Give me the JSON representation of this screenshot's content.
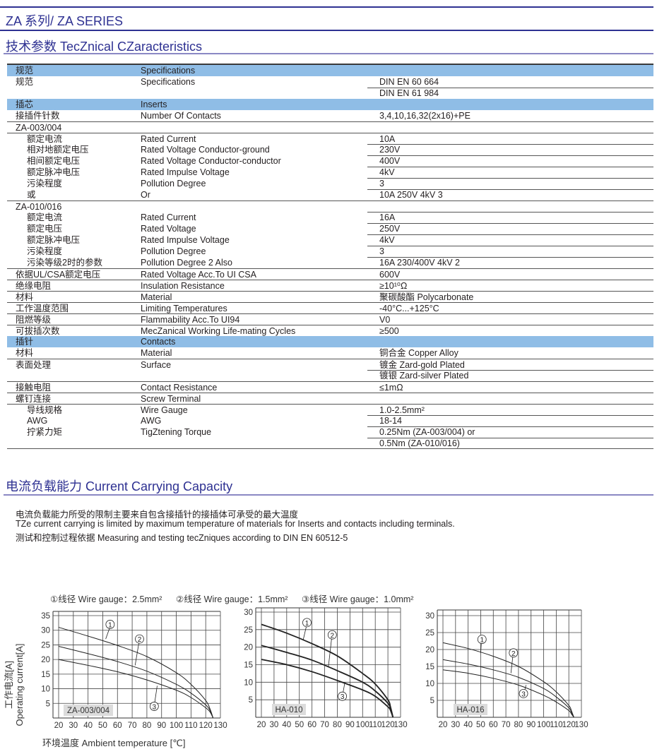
{
  "header": {
    "series_title": "ZA 系列/ ZA SERIES",
    "section_title": "技术参数 TecZnical CZaracteristics"
  },
  "table": {
    "rows": [
      {
        "cn": "规范",
        "en": "Specifications",
        "value": ""
      },
      {
        "cn": "规范",
        "en": "Specifications",
        "value": "DIN EN 60 664"
      },
      {
        "cn": "",
        "en": "",
        "value": "DIN EN 61 984"
      },
      {
        "cn": "插芯",
        "en": "Inserts",
        "value": ""
      },
      {
        "cn": "接插件针数",
        "en": "Number Of Contacts",
        "value": "3,4,10,16,32(2x16)+PE"
      },
      {
        "cn": "ZA-003/004",
        "en": "",
        "value": ""
      },
      {
        "cn": "额定电流",
        "en": "Rated Current",
        "value": "10A"
      },
      {
        "cn": "相对地额定电压",
        "en": "Rated Voltage Conductor-ground",
        "value": "230V"
      },
      {
        "cn": "相间额定电压",
        "en": "Rated Voltage Conductor-conductor",
        "value": "400V"
      },
      {
        "cn": "额定脉冲电压",
        "en": "Rated Impulse Voltage",
        "value": "4kV"
      },
      {
        "cn": "污染程度",
        "en": "Pollution Degree",
        "value": "3"
      },
      {
        "cn": "或",
        "en": "Or",
        "value": "10A 250V 4kV 3"
      },
      {
        "cn": "ZA-010/016",
        "en": "",
        "value": ""
      },
      {
        "cn": "额定电流",
        "en": "Rated Current",
        "value": "16A"
      },
      {
        "cn": "额定电压",
        "en": "Rated Voltage",
        "value": "250V"
      },
      {
        "cn": "额定脉冲电压",
        "en": "Rated Impulse Voltage",
        "value": "4kV"
      },
      {
        "cn": "污染程度",
        "en": "Pollution Degree",
        "value": "3"
      },
      {
        "cn": "污染等级2时的参数",
        "en": "Pollution Degree 2 Also",
        "value": "16A 230/400V 4kV 2"
      },
      {
        "cn": "依据UL/CSA额定电压",
        "en": "Rated Voltage Acc.To UI CSA",
        "value": "600V"
      },
      {
        "cn": "绝缘电阻",
        "en": "Insulation Resistance",
        "value": "≥10¹⁰Ω"
      },
      {
        "cn": "材料",
        "en": "Material",
        "value": "聚碳酸酯 Polycarbonate"
      },
      {
        "cn": "工作温度范围",
        "en": "Limiting Temperatures",
        "value": "-40°C...+125°C"
      },
      {
        "cn": "阻燃等级",
        "en": "Flammability Acc.To UI94",
        "value": "V0"
      },
      {
        "cn": "可拔插次数",
        "en": "MecZanical Working Life-mating Cycles",
        "value": "≥500"
      },
      {
        "cn": "插针",
        "en": "Contacts",
        "value": ""
      },
      {
        "cn": "材料",
        "en": "Material",
        "value": "铜合金 Copper Alloy"
      },
      {
        "cn": "表面处理",
        "en": "Surface",
        "value": "镀金 Zard-gold Plated"
      },
      {
        "cn": "",
        "en": "",
        "value": "镀银 Zard-silver Plated"
      },
      {
        "cn": "接触电阻",
        "en": "Contact Resistance",
        "value": "≤1mΩ"
      },
      {
        "cn": "螺钉连接",
        "en": "Screw Terminal",
        "value": ""
      },
      {
        "cn": "导线规格",
        "en": "Wire Gauge",
        "value": "1.0-2.5mm²"
      },
      {
        "cn": "AWG",
        "en": "AWG",
        "value": "18-14"
      },
      {
        "cn": "拧紧力矩",
        "en": "TigZtening Torque",
        "value": "0.25Nm (ZA-003/004) or"
      },
      {
        "cn": "",
        "en": "",
        "value": "0.5Nm (ZA-010/016)"
      }
    ],
    "header_color": "#8fbde6"
  },
  "capacity": {
    "title": "电流负载能力 Current Carrying Capacity",
    "lines": [
      "电流负载能力所受的限制主要来自包含接插针的接插体可承受的最大温度",
      "TZe current carrying is limited by maximum temperature of materials for Inserts and contacts including terminals.",
      "测试和控制过程依据 Measuring and testing tecZniques according to DIN EN 60512-5"
    ],
    "legend": [
      "①线径 Wire gauge：2.5mm²",
      "②线径 Wire gauge：1.5mm²",
      "③线径 Wire gauge：1.0mm²"
    ],
    "ylabel_cn": "工作电流[A]",
    "ylabel_en": "Operating current[A]",
    "xlabel": "环境温度 Ambient temperature [℃]"
  },
  "chart_data": [
    {
      "type": "line",
      "title": "ZA-003/004",
      "xlim": [
        20,
        130
      ],
      "ylim": [
        0,
        35
      ],
      "xticks": [
        20,
        30,
        40,
        50,
        60,
        70,
        80,
        90,
        100,
        110,
        120,
        130
      ],
      "yticks": [
        5,
        10,
        15,
        20,
        25,
        30,
        35
      ],
      "grid": true,
      "xlabel": "环境温度 Ambient temperature [℃]",
      "ylabel": "工作电流[A] Operating current[A]",
      "series": [
        {
          "name": "①",
          "points": [
            [
              20,
              31
            ],
            [
              40,
              28
            ],
            [
              60,
              24.8
            ],
            [
              80,
              21
            ],
            [
              100,
              15.5
            ],
            [
              110,
              11.5
            ],
            [
              120,
              6
            ],
            [
              123,
              3
            ],
            [
              125,
              0
            ]
          ]
        },
        {
          "name": "②",
          "points": [
            [
              20,
              24.5
            ],
            [
              40,
              22
            ],
            [
              60,
              19.3
            ],
            [
              80,
              16
            ],
            [
              100,
              11.5
            ],
            [
              110,
              8.5
            ],
            [
              120,
              4.5
            ],
            [
              123,
              2.5
            ],
            [
              125,
              0
            ]
          ]
        },
        {
          "name": "③",
          "points": [
            [
              20,
              20
            ],
            [
              40,
              18
            ],
            [
              60,
              15.8
            ],
            [
              80,
              13
            ],
            [
              100,
              9.5
            ],
            [
              110,
              7
            ],
            [
              120,
              3.5
            ],
            [
              123,
              2
            ],
            [
              125,
              0
            ]
          ]
        }
      ]
    },
    {
      "type": "line",
      "title": "HA-010",
      "xlim": [
        20,
        130
      ],
      "ylim": [
        0,
        30
      ],
      "xticks": [
        20,
        30,
        40,
        50,
        60,
        70,
        80,
        90,
        100,
        110,
        120,
        130
      ],
      "yticks": [
        5,
        10,
        15,
        20,
        25,
        30
      ],
      "grid": true,
      "series": [
        {
          "name": "①",
          "points": [
            [
              20,
              26.5
            ],
            [
              40,
              24
            ],
            [
              60,
              21
            ],
            [
              80,
              17.5
            ],
            [
              100,
              12.5
            ],
            [
              110,
              9.5
            ],
            [
              120,
              5
            ],
            [
              122,
              3
            ],
            [
              124,
              0
            ]
          ]
        },
        {
          "name": "②",
          "points": [
            [
              20,
              20.5
            ],
            [
              40,
              18.5
            ],
            [
              60,
              16.3
            ],
            [
              80,
              13.3
            ],
            [
              100,
              10
            ],
            [
              110,
              7.5
            ],
            [
              120,
              4
            ],
            [
              122,
              2.5
            ],
            [
              124,
              0
            ]
          ]
        },
        {
          "name": "③",
          "points": [
            [
              20,
              16.5
            ],
            [
              40,
              15
            ],
            [
              60,
              13
            ],
            [
              80,
              10.5
            ],
            [
              100,
              7.8
            ],
            [
              110,
              6
            ],
            [
              120,
              3
            ],
            [
              122,
              2
            ],
            [
              124,
              0
            ]
          ]
        }
      ]
    },
    {
      "type": "line",
      "title": "HA-016",
      "xlim": [
        20,
        130
      ],
      "ylim": [
        0,
        30
      ],
      "xticks": [
        20,
        30,
        40,
        50,
        60,
        70,
        80,
        90,
        100,
        110,
        120,
        130
      ],
      "yticks": [
        5,
        10,
        15,
        20,
        25,
        30
      ],
      "grid": true,
      "series": [
        {
          "name": "①",
          "points": [
            [
              20,
              22
            ],
            [
              40,
              20.3
            ],
            [
              60,
              18
            ],
            [
              80,
              15
            ],
            [
              100,
              10.5
            ],
            [
              110,
              7.5
            ],
            [
              120,
              3.5
            ],
            [
              122,
              2
            ],
            [
              124,
              0
            ]
          ]
        },
        {
          "name": "②",
          "points": [
            [
              20,
              17
            ],
            [
              40,
              15.7
            ],
            [
              60,
              14
            ],
            [
              80,
              11.8
            ],
            [
              100,
              8.5
            ],
            [
              110,
              6
            ],
            [
              120,
              2.8
            ],
            [
              122,
              1.5
            ],
            [
              124,
              0
            ]
          ]
        },
        {
          "name": "③",
          "points": [
            [
              20,
              14
            ],
            [
              40,
              13
            ],
            [
              60,
              11.5
            ],
            [
              80,
              9.5
            ],
            [
              100,
              6.5
            ],
            [
              110,
              4.5
            ],
            [
              120,
              2
            ],
            [
              122,
              1
            ],
            [
              124,
              0
            ]
          ]
        }
      ]
    }
  ],
  "colors": {
    "brand": "#2e3192",
    "rule_light": "#8a88c4",
    "label_box": "#dcdcdc"
  }
}
